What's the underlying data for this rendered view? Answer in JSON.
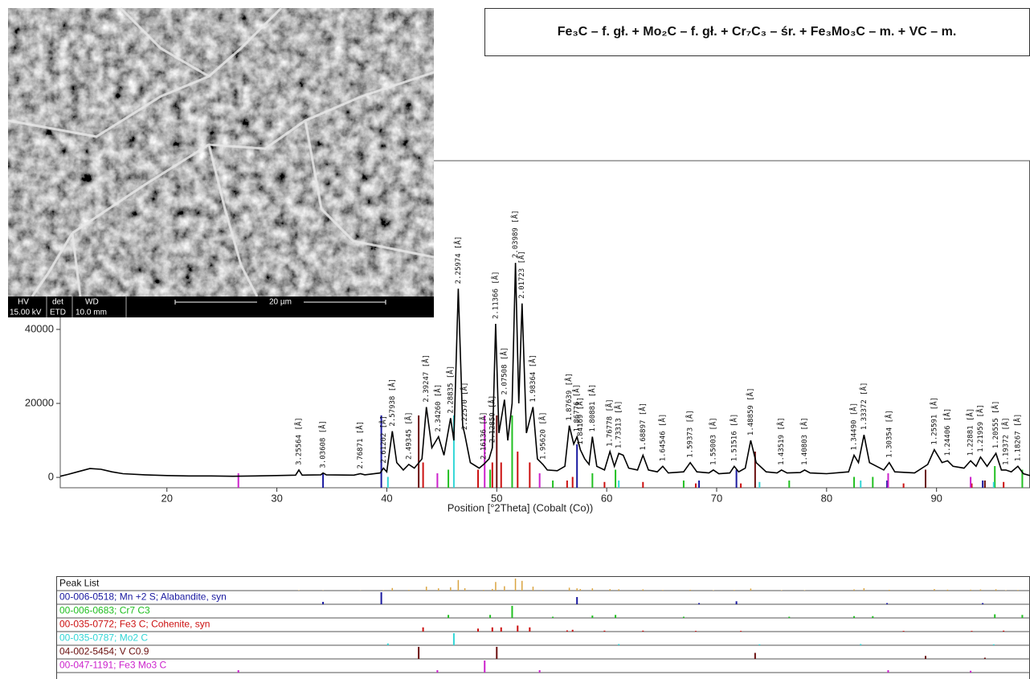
{
  "sem_image": {
    "info_labels": [
      "HV",
      "det",
      "WD"
    ],
    "info_values": [
      "15.00 kV",
      "ETD",
      "10.0 mm"
    ],
    "scale_bar": "20 µm"
  },
  "phase_box": {
    "text": "Fe₃C – f. gł. + Mo₂C – f. gł. + Cr₇C₃ – śr. + Fe₃Mo₃C – m. + VC – m."
  },
  "chart_data": {
    "type": "line",
    "xlabel": "Position [°2Theta] (Cobalt (Co))",
    "color": "#000000",
    "xlim": [
      10.3,
      98.5
    ],
    "ylim": [
      -2800,
      85600
    ],
    "xticks": [
      20,
      30,
      40,
      50,
      60,
      70,
      80,
      90
    ],
    "yticks": [
      0,
      20000,
      40000
    ],
    "x": [
      10.3,
      11,
      12,
      13,
      14,
      15,
      16,
      18,
      20,
      22,
      24,
      26,
      28,
      30,
      31.7,
      32.0,
      32.3,
      34.0,
      34.2,
      34.5,
      37,
      37.6,
      38,
      39.4,
      39.7,
      40.0,
      40.5,
      40.9,
      41.5,
      42.0,
      42.5,
      43.2,
      43.6,
      44.1,
      44.7,
      45.2,
      45.8,
      46.1,
      46.5,
      46.9,
      47.1,
      47.6,
      48.4,
      48.8,
      49.3,
      49.6,
      49.9,
      50.2,
      50.7,
      51.0,
      51.4,
      51.7,
      52.0,
      52.3,
      52.7,
      53.3,
      53.7,
      54.2,
      54.6,
      55.5,
      56.2,
      56.6,
      57.0,
      57.3,
      57.6,
      58.0,
      58.4,
      58.7,
      59.1,
      59.8,
      60.3,
      60.7,
      61.1,
      61.5,
      62.0,
      62.8,
      63.3,
      63.8,
      64.6,
      65.1,
      65.6,
      67.0,
      67.6,
      68.2,
      69.3,
      69.7,
      70.2,
      71.2,
      71.6,
      72.0,
      72.6,
      73.1,
      73.6,
      74.5,
      75.5,
      75.9,
      76.4,
      77.6,
      78.0,
      78.5,
      80,
      82.0,
      82.5,
      82.9,
      83.4,
      83.9,
      85.2,
      85.7,
      86.2,
      88,
      89.2,
      89.8,
      90.5,
      91.0,
      91.5,
      92.5,
      93.1,
      93.6,
      94.0,
      94.6,
      95.4,
      95.9,
      96.3,
      96.8,
      97.4,
      97.9,
      98.5
    ],
    "values": [
      300,
      800,
      1600,
      2400,
      2200,
      1500,
      1000,
      700,
      500,
      400,
      400,
      300,
      400,
      500,
      600,
      2000,
      600,
      700,
      1200,
      700,
      600,
      1000,
      700,
      1200,
      2500,
      1500,
      12500,
      4000,
      2000,
      3500,
      2500,
      5000,
      19000,
      8000,
      11000,
      6000,
      16000,
      10000,
      51000,
      14000,
      11500,
      4000,
      2500,
      3500,
      5000,
      8000,
      41500,
      12000,
      21000,
      10000,
      20000,
      58000,
      20000,
      47000,
      12000,
      19000,
      5000,
      3500,
      2000,
      1800,
      3000,
      14000,
      9000,
      11000,
      7500,
      5000,
      3500,
      11000,
      3000,
      2000,
      7000,
      3000,
      6500,
      6000,
      2500,
      2000,
      6000,
      2000,
      1500,
      3000,
      1200,
      1500,
      4000,
      1500,
      1200,
      2000,
      1000,
      1200,
      3000,
      1500,
      2500,
      10000,
      4000,
      1500,
      1200,
      2000,
      1200,
      1300,
      2000,
      1200,
      1000,
      1500,
      6000,
      4000,
      11500,
      4000,
      2000,
      4000,
      1500,
      1200,
      3500,
      7500,
      4000,
      4500,
      3000,
      2500,
      4500,
      3000,
      5500,
      3000,
      6500,
      2000,
      2000,
      1500,
      3000,
      1000,
      500
    ],
    "peak_labels": [
      {
        "x": 32.0,
        "y": 2000,
        "label": "3.25564 [Å]"
      },
      {
        "x": 34.2,
        "y": 1200,
        "label": "3.03608 [Å]"
      },
      {
        "x": 37.6,
        "y": 1000,
        "label": "2.76871 [Å]"
      },
      {
        "x": 39.7,
        "y": 2500,
        "label": "2.61202 [Å]"
      },
      {
        "x": 40.5,
        "y": 12500,
        "label": "2.57938 [Å]"
      },
      {
        "x": 42.0,
        "y": 3500,
        "label": "2.49345 [Å]"
      },
      {
        "x": 43.6,
        "y": 19000,
        "label": "2.39247 [Å]"
      },
      {
        "x": 44.7,
        "y": 11000,
        "label": "2.34260 [Å]"
      },
      {
        "x": 45.8,
        "y": 16000,
        "label": "2.28835 [Å]"
      },
      {
        "x": 46.5,
        "y": 51000,
        "label": "2.25974 [Å]"
      },
      {
        "x": 47.1,
        "y": 11500,
        "label": "2.22570 [Å]"
      },
      {
        "x": 48.8,
        "y": 3500,
        "label": "2.16136 [Å]"
      },
      {
        "x": 49.6,
        "y": 8000,
        "label": "2.12850 [Å]"
      },
      {
        "x": 49.9,
        "y": 41500,
        "label": "2.11366 [Å]"
      },
      {
        "x": 50.7,
        "y": 21000,
        "label": "2.07508 [Å]"
      },
      {
        "x": 51.7,
        "y": 58000,
        "label": "2.03989 [Å]"
      },
      {
        "x": 52.3,
        "y": 47000,
        "label": "2.01723 [Å]"
      },
      {
        "x": 53.3,
        "y": 19000,
        "label": "1.98364 [Å]"
      },
      {
        "x": 54.2,
        "y": 3500,
        "label": "1.95620 [Å]"
      },
      {
        "x": 56.6,
        "y": 14000,
        "label": "1.87639 [Å]"
      },
      {
        "x": 57.3,
        "y": 11000,
        "label": "1.86776 [Å]"
      },
      {
        "x": 57.6,
        "y": 7500,
        "label": "1.84169 [Å]"
      },
      {
        "x": 58.7,
        "y": 11000,
        "label": "1.80881 [Å]"
      },
      {
        "x": 60.3,
        "y": 7000,
        "label": "1.76778 [Å]"
      },
      {
        "x": 61.1,
        "y": 6500,
        "label": "1.73313 [Å]"
      },
      {
        "x": 63.3,
        "y": 6000,
        "label": "1.68897 [Å]"
      },
      {
        "x": 65.1,
        "y": 3000,
        "label": "1.64546 [Å]"
      },
      {
        "x": 67.6,
        "y": 4000,
        "label": "1.59373 [Å]"
      },
      {
        "x": 69.7,
        "y": 2000,
        "label": "1.55003 [Å]"
      },
      {
        "x": 71.6,
        "y": 3000,
        "label": "1.51516 [Å]"
      },
      {
        "x": 73.1,
        "y": 10000,
        "label": "1.48859 [Å]"
      },
      {
        "x": 75.9,
        "y": 2000,
        "label": "1.43519 [Å]"
      },
      {
        "x": 78.0,
        "y": 2000,
        "label": "1.40803 [Å]"
      },
      {
        "x": 82.5,
        "y": 6000,
        "label": "1.34490 [Å]"
      },
      {
        "x": 83.4,
        "y": 11500,
        "label": "1.33372 [Å]"
      },
      {
        "x": 85.7,
        "y": 4000,
        "label": "1.30354 [Å]"
      },
      {
        "x": 89.8,
        "y": 7500,
        "label": "1.25591 [Å]"
      },
      {
        "x": 91.0,
        "y": 4500,
        "label": "1.24406 [Å]"
      },
      {
        "x": 93.1,
        "y": 4500,
        "label": "1.22881 [Å]"
      },
      {
        "x": 94.0,
        "y": 5500,
        "label": "1.21959 [Å]"
      },
      {
        "x": 95.4,
        "y": 6500,
        "label": "1.20555 [Å]"
      },
      {
        "x": 96.3,
        "y": 2000,
        "label": "1.19372 [Å]"
      },
      {
        "x": 97.4,
        "y": 3000,
        "label": "1.18267 [Å]"
      }
    ],
    "peak_list_title": "Peak List",
    "peak_list_color": "#d9a441",
    "reference_patterns": [
      {
        "name": "00-006-0518; Mn +2 S; Alabandite, syn",
        "color": "#1a1aa0",
        "positions": [
          34.2,
          39.5,
          57.3,
          68.4,
          71.8,
          85.5,
          94.2
        ],
        "intensities": [
          20,
          100,
          60,
          10,
          25,
          10,
          10
        ]
      },
      {
        "name": "00-006-0683; Cr7 C3",
        "color": "#22c022",
        "positions": [
          45.6,
          49.4,
          51.4,
          55.1,
          58.7,
          60.8,
          67.0,
          76.6,
          82.5,
          84.2,
          95.3,
          97.8
        ],
        "intensities": [
          25,
          25,
          100,
          10,
          20,
          25,
          10,
          10,
          15,
          15,
          30,
          25
        ]
      },
      {
        "name": "00-035-0772; Fe3 C; Cohenite, syn",
        "color": "#cc1111",
        "positions": [
          43.3,
          48.3,
          49.6,
          50.4,
          51.9,
          53.0,
          56.4,
          56.9,
          59.8,
          63.3,
          68.1,
          72.2,
          87.0,
          93.2,
          96.1
        ],
        "intensities": [
          35,
          25,
          35,
          35,
          50,
          35,
          10,
          15,
          8,
          8,
          6,
          6,
          6,
          6,
          8
        ]
      },
      {
        "name": "00-035-0787; Mo2 C",
        "color": "#33d6d6",
        "positions": [
          40.1,
          46.1,
          61.1,
          73.9,
          83.1,
          95.2
        ],
        "intensities": [
          15,
          100,
          10,
          8,
          10,
          8
        ]
      },
      {
        "name": "04-002-5454; V C0.9",
        "color": "#6b1010",
        "positions": [
          42.9,
          50.0,
          73.5,
          89.0,
          94.4
        ],
        "intensities": [
          100,
          100,
          50,
          25,
          10
        ]
      },
      {
        "name": "00-047-1191; Fe3 Mo3 C",
        "color": "#cc22cc",
        "positions": [
          26.5,
          44.6,
          48.9,
          53.9,
          85.6,
          93.1
        ],
        "intensities": [
          20,
          20,
          100,
          20,
          20,
          15
        ]
      }
    ]
  }
}
